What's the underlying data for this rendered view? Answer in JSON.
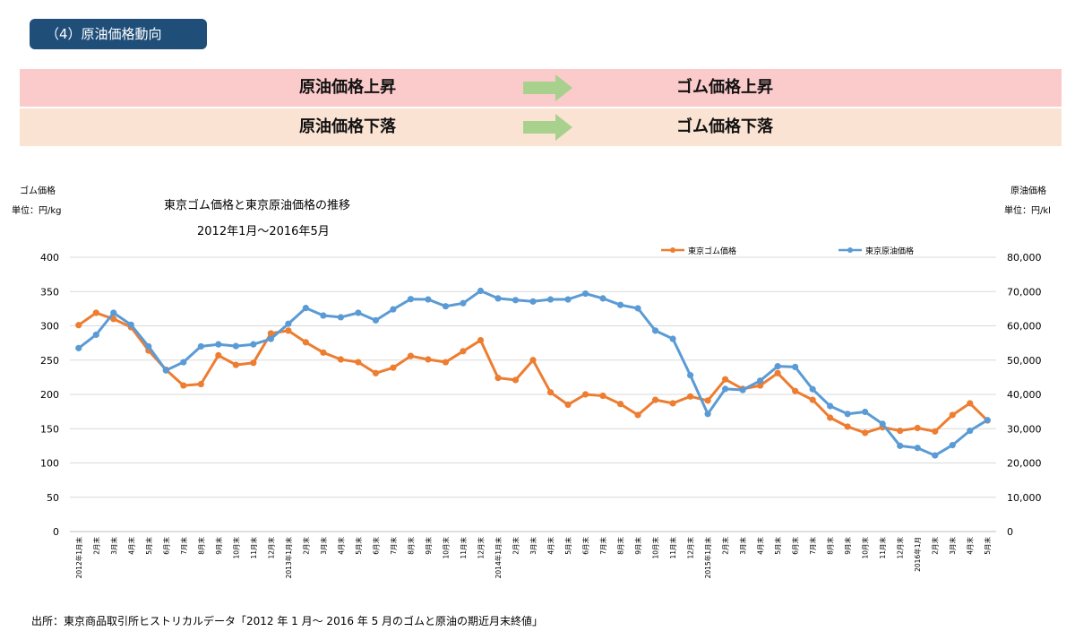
{
  "header": {
    "section_title": "（4）原油価格動向"
  },
  "relations": [
    {
      "cause": "原油価格上昇",
      "effect": "ゴム価格上昇",
      "arrow_icon": "right-arrow-icon"
    },
    {
      "cause": "原油価格下落",
      "effect": "ゴム価格下落",
      "arrow_icon": "right-arrow-icon"
    }
  ],
  "colors": {
    "header_bg": "#1f4e79",
    "band_up": "#fbcaca",
    "band_down": "#fbe3d4",
    "arrow": "#a9d18e",
    "rubber": "#ed7d31",
    "oil": "#5b9bd5"
  },
  "chart_data": {
    "type": "line",
    "title": "東京ゴム価格と東京原油価格の推移",
    "subtitle": "2012年1月～2016年5月",
    "ylabel_left": "ゴム価格",
    "unit_left": "単位：円/kg",
    "ylabel_right": "原油価格",
    "unit_right": "単位：円/kl",
    "ylim_left": [
      0,
      400
    ],
    "ylim_right": [
      0,
      80000
    ],
    "yticks_left": [
      "0",
      "50",
      "100",
      "150",
      "200",
      "250",
      "300",
      "350",
      "400"
    ],
    "yticks_right": [
      "0",
      "10,000",
      "20,000",
      "30,000",
      "40,000",
      "50,000",
      "60,000",
      "70,000",
      "80,000"
    ],
    "grid": true,
    "legend": "top-right",
    "categories": [
      "2012年1月末",
      "2月末",
      "3月末",
      "4月末",
      "5月末",
      "6月末",
      "7月末",
      "8月末",
      "9月末",
      "10月末",
      "11月末",
      "12月末",
      "2013年1月末",
      "2月末",
      "3月末",
      "4月末",
      "5月末",
      "6月末",
      "7月末",
      "8月末",
      "9月末",
      "10月末",
      "11月末",
      "12月末",
      "2014年1月末",
      "2月末",
      "3月末",
      "4月末",
      "5月末",
      "6月末",
      "7月末",
      "8月末",
      "9月末",
      "10月末",
      "11月末",
      "12月末",
      "2015年1月末",
      "2月末",
      "3月末",
      "4月末",
      "5月末",
      "6月末",
      "7月末",
      "8月末",
      "9月末",
      "10月末",
      "11月末",
      "12月末",
      "2016年1月",
      "2月末",
      "3月末",
      "4月末",
      "5月末"
    ],
    "series": [
      {
        "name": "東京ゴム価格",
        "axis": "left",
        "values": [
          301,
          319,
          310,
          298,
          264,
          236,
          213,
          215,
          257,
          243,
          246,
          289,
          293,
          276,
          261,
          251,
          247,
          231,
          239,
          256,
          251,
          247,
          263,
          279,
          224,
          221,
          250,
          203,
          185,
          200,
          198,
          186,
          170,
          192,
          187,
          197,
          191,
          222,
          208,
          213,
          231,
          205,
          192,
          166,
          153,
          144,
          152,
          147,
          151,
          146,
          170,
          187,
          162
        ]
      },
      {
        "name": "東京原油価格",
        "axis": "right",
        "values": [
          53500,
          57400,
          63800,
          60300,
          54000,
          47000,
          49400,
          54000,
          54600,
          54100,
          54600,
          56200,
          60600,
          65200,
          63000,
          62500,
          63800,
          61600,
          64800,
          67800,
          67700,
          65700,
          66600,
          70200,
          68000,
          67500,
          67100,
          67700,
          67700,
          69400,
          68000,
          66100,
          65100,
          58600,
          56200,
          45600,
          34300,
          41600,
          41300,
          44000,
          48200,
          48000,
          41500,
          36600,
          34300,
          34900,
          31400,
          25000,
          24400,
          22200,
          25200,
          29400,
          32500
        ]
      }
    ]
  },
  "source": "出所：東京商品取引所ヒストリカルデータ「2012 年 1 月～ 2016 年 5 月のゴムと原油の期近月末終値」"
}
